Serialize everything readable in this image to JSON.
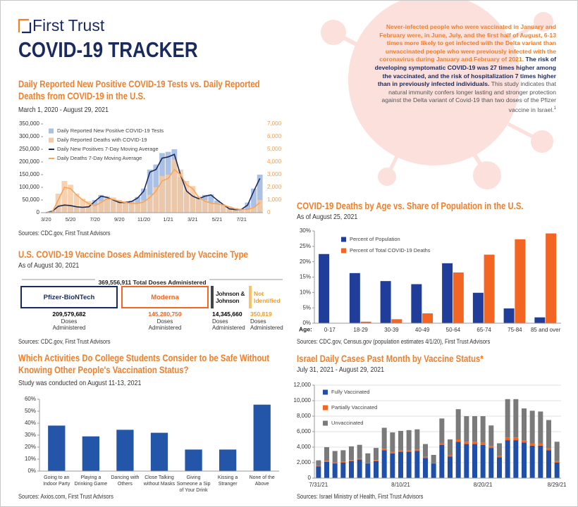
{
  "header": {
    "brand": "First Trust",
    "title": "COVID-19 TRACKER"
  },
  "callout": {
    "highlight": "Never-infected people who were vaccinated in January and February were, in June, July, and the first half of August, 6-13 times more likely to get infected with the Delta variant than unvaccinated people who were previously infected with the coronavirus during January and February of 2021.",
    "emphasis": "The risk of developing symptomatic COVID-19 was 27 times higher among the vaccinated, and the risk of hospitalization 7 times higher than in previously infected individuals.",
    "body": "This study indicates that natural immunity confers longer lasting and stronger protection against the Delta variant of Covid-19 than two doses of the Pfizer vaccine in Israel.",
    "footnote": "1"
  },
  "vaccine_doses": {
    "title": "U.S. COVID-19 Vaccine Doses Administered by Vaccine Type",
    "subtitle": "As of August 30, 2021",
    "total": "369,556,911 Total Doses Administered",
    "vaccines": [
      {
        "name": "Pfizer-BioNTech",
        "doses": "209,579,682",
        "unit": "Doses Administered"
      },
      {
        "name": "Moderna",
        "doses": "145,280,750",
        "unit": "Doses Administered"
      },
      {
        "name": "Johnson & Johnson",
        "doses": "14,345,660",
        "unit": "Doses Administered"
      },
      {
        "name": "Not Identified",
        "doses": "350,819",
        "unit": "Doses Administered"
      }
    ],
    "source": "Sources: CDC.gov, First Trust Advisors"
  },
  "chart_data": [
    {
      "type": "line",
      "title": "Daily Reported New Positive COVID-19 Tests vs. Daily Reported Deaths from COVID-19 in the U.S.",
      "subtitle": "March 1, 2020 - August 29, 2021",
      "source": "Sources: CDC.gov, First Trust Advisors",
      "legend": "upper left",
      "categories": [
        "3/20",
        null,
        null,
        null,
        "5/20",
        null,
        null,
        null,
        "7/20",
        null,
        null,
        null,
        "9/20",
        null,
        null,
        null,
        "11/20",
        null,
        null,
        null,
        "1/21",
        null,
        null,
        null,
        "3/21",
        null,
        null,
        null,
        "5/21",
        null,
        null,
        null,
        "7/21",
        null,
        null,
        null
      ],
      "series": [
        {
          "name": "Daily Reported New Positive COVID-19 Tests",
          "mark": "bar",
          "color": "#aac0e4",
          "values": [
            0,
            8000,
            32000,
            29000,
            30000,
            25000,
            20000,
            26000,
            50000,
            70000,
            58000,
            48000,
            42000,
            38000,
            47000,
            62000,
            95000,
            170000,
            190000,
            235000,
            240000,
            250000,
            140000,
            80000,
            70000,
            57000,
            70000,
            72000,
            48000,
            30000,
            14000,
            18000,
            12000,
            40000,
            95000,
            150000
          ]
        },
        {
          "name": "Daily Reported Deaths with COVID-19",
          "mark": "bar",
          "axis": "y2",
          "color": "#f8c9a0",
          "values": [
            0,
            100,
            1500,
            2500,
            2200,
            1500,
            1100,
            900,
            600,
            900,
            1300,
            1200,
            1000,
            900,
            800,
            800,
            950,
            1400,
            2000,
            2900,
            3000,
            4200,
            3400,
            2500,
            2100,
            1300,
            1000,
            800,
            750,
            650,
            500,
            350,
            300,
            300,
            450,
            1000
          ]
        },
        {
          "name": "Daily New Positives 7-Day Moving Average",
          "mark": "line",
          "color": "#1b2a5c",
          "values": [
            0,
            5000,
            25000,
            30000,
            28000,
            23000,
            21000,
            23000,
            45000,
            65000,
            60000,
            50000,
            40000,
            40000,
            44000,
            58000,
            85000,
            160000,
            170000,
            215000,
            220000,
            230000,
            150000,
            85000,
            65000,
            55000,
            65000,
            70000,
            50000,
            32000,
            15000,
            12000,
            13000,
            30000,
            85000,
            135000
          ]
        },
        {
          "name": "Daily Deaths 7-Day Moving Average",
          "mark": "line",
          "axis": "y2",
          "color": "#f5a65b",
          "values": [
            0,
            50,
            1000,
            2000,
            1900,
            1400,
            1000,
            700,
            550,
            800,
            1100,
            1050,
            900,
            800,
            720,
            730,
            850,
            1200,
            1700,
            2500,
            2700,
            3400,
            3000,
            2200,
            1900,
            1200,
            900,
            750,
            700,
            600,
            450,
            300,
            250,
            250,
            400,
            800
          ]
        }
      ],
      "ylim": [
        0,
        350000
      ],
      "yticks": [
        0,
        {
          "value": 50000,
          "label": "50,000"
        },
        {
          "value": 100000,
          "label": "100,000"
        },
        {
          "value": 150000,
          "label": "150,000"
        },
        {
          "value": 200000,
          "label": "200,000"
        },
        {
          "value": 250000,
          "label": "250,000"
        },
        {
          "value": 300000,
          "label": "300,000"
        },
        {
          "value": 350000,
          "label": "350,000"
        }
      ],
      "y2lim": [
        0,
        7000
      ],
      "y2ticks": [
        0,
        {
          "value": 1000,
          "label": "1,000"
        },
        {
          "value": 2000,
          "label": "2,000"
        },
        {
          "value": 3000,
          "label": "3,000"
        },
        {
          "value": 4000,
          "label": "4,000"
        },
        {
          "value": 5000,
          "label": "5,000"
        },
        {
          "value": 6000,
          "label": "6,000"
        },
        {
          "value": 7000,
          "label": "7,000"
        }
      ],
      "grid": false
    },
    {
      "type": "bar",
      "title": "Which Activities Do College Students Consider to be Safe Without Knowing Other People's Vaccination Status?",
      "subtitle": "Study was conducted on August 11-13, 2021",
      "source": "Sources: Axios.com, First Trust Advisors",
      "categories": [
        "Going to an Indoor Party",
        "Playing a Drinking Game",
        "Dancing with Others",
        "Close Talking without Masks",
        "Giving Someone a Sip of Your Drink",
        "Kissing a Stranger",
        "None of the Above"
      ],
      "values": [
        38,
        29,
        34.5,
        32,
        18,
        18,
        55.5
      ],
      "color": "#2356a8",
      "ylim": [
        0,
        60
      ],
      "yticks": [
        {
          "value": 0,
          "label": "0%"
        },
        {
          "value": 10,
          "label": "10%"
        },
        {
          "value": 20,
          "label": "20%"
        },
        {
          "value": 30,
          "label": "30%"
        },
        {
          "value": 40,
          "label": "40%"
        },
        {
          "value": 50,
          "label": "50%"
        },
        {
          "value": 60,
          "label": "60%"
        }
      ],
      "grid": false
    },
    {
      "type": "bar",
      "title": "COVID-19 Deaths by Age vs. Share of Population in the U.S.",
      "subtitle": "As of August 25, 2021",
      "source": "Sources: CDC.gov, Census.gov (population estimates 4/1/20), First Trust Advisors",
      "x_label": "Age:",
      "legend": "upper left",
      "categories": [
        "0-17",
        "18-29",
        "30-39",
        "40-49",
        "50-64",
        "65-74",
        "75-84",
        "85 and over"
      ],
      "series": [
        {
          "name": "Percent of Population",
          "color": "#1f3d99",
          "values": [
            22.5,
            16.3,
            13.7,
            12.7,
            19.5,
            9.9,
            4.8,
            1.9
          ]
        },
        {
          "name": "Percent of Total COVID-19 Deaths",
          "color": "#f26522",
          "values": [
            0.1,
            0.5,
            1.3,
            3.2,
            16.5,
            22.3,
            27.3,
            29.2
          ]
        }
      ],
      "ylim": [
        0,
        30
      ],
      "yticks": [
        {
          "value": 0,
          "label": "0%"
        },
        {
          "value": 5,
          "label": "5%"
        },
        {
          "value": 10,
          "label": "10%"
        },
        {
          "value": 15,
          "label": "15%"
        },
        {
          "value": 20,
          "label": "20%"
        },
        {
          "value": 25,
          "label": "25%"
        },
        {
          "value": 30,
          "label": "30%"
        }
      ],
      "grid": false
    },
    {
      "type": "bar",
      "stacked": true,
      "title": "Israel Daily Cases Past Month by Vaccine Status*",
      "subtitle": "July 31, 2021 - August 29, 2021",
      "source": "Sources: Israel Ministry of Health, First Trust Advisors",
      "legend": "upper left",
      "categories": [
        "7/31/21",
        null,
        null,
        null,
        null,
        null,
        null,
        null,
        null,
        null,
        "8/10/21",
        null,
        null,
        null,
        null,
        null,
        null,
        null,
        null,
        null,
        "8/20/21",
        null,
        null,
        null,
        null,
        null,
        null,
        null,
        null,
        "8/29/21"
      ],
      "series": [
        {
          "name": "Fully Vaccinated",
          "color": "#1f4fa8",
          "values": [
            1500,
            2100,
            1900,
            2000,
            2200,
            2400,
            1900,
            2200,
            3600,
            3200,
            3400,
            3400,
            3500,
            2600,
            1900,
            4300,
            2800,
            4700,
            4400,
            4400,
            4300,
            3900,
            2700,
            4900,
            4900,
            4600,
            4200,
            4200,
            3600,
            2000
          ]
        },
        {
          "name": "Partially Vaccinated",
          "color": "#f26522",
          "values": [
            100,
            150,
            150,
            150,
            150,
            150,
            100,
            150,
            200,
            200,
            200,
            200,
            200,
            150,
            100,
            250,
            200,
            300,
            300,
            300,
            300,
            250,
            150,
            350,
            350,
            300,
            300,
            300,
            250,
            200
          ]
        },
        {
          "name": "Unvaccinated",
          "color": "#7a7a7a",
          "values": [
            700,
            1750,
            1450,
            1450,
            1750,
            1750,
            1200,
            1550,
            2700,
            2500,
            2500,
            2600,
            2600,
            1650,
            1000,
            3150,
            2000,
            3900,
            3300,
            3300,
            3400,
            2650,
            1650,
            4950,
            4950,
            4100,
            4200,
            4100,
            3650,
            2500
          ]
        }
      ],
      "ylim": [
        0,
        12000
      ],
      "yticks": [
        0,
        {
          "value": 2000,
          "label": "2,000"
        },
        {
          "value": 4000,
          "label": "4,000"
        },
        {
          "value": 6000,
          "label": "6,000"
        },
        {
          "value": 8000,
          "label": "8,000"
        },
        {
          "value": 10000,
          "label": "10,000"
        },
        {
          "value": 12000,
          "label": "12,000"
        }
      ],
      "grid": true
    }
  ]
}
